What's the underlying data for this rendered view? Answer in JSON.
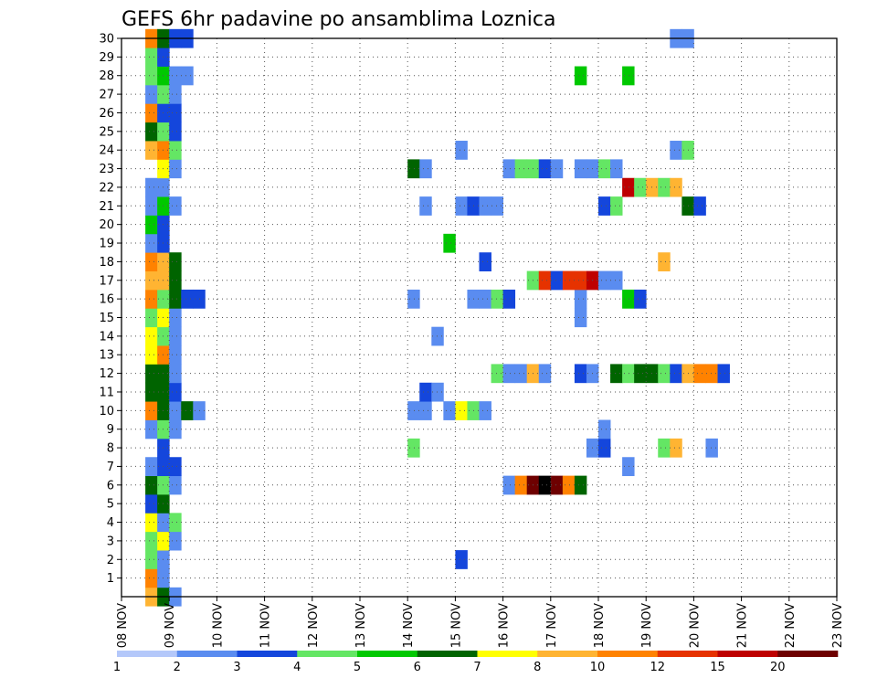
{
  "chart_data": {
    "type": "heatmap",
    "title": "GEFS 6hr padavine po ansamblima Loznica",
    "x_ticks": [
      "08 NOV",
      "09 NOV",
      "10 NOV",
      "11 NOV",
      "12 NOV",
      "13 NOV",
      "14 NOV",
      "15 NOV",
      "16 NOV",
      "17 NOV",
      "18 NOV",
      "19 NOV",
      "20 NOV",
      "21 NOV",
      "22 NOV",
      "23 NOV"
    ],
    "y_ticks": [
      1,
      2,
      3,
      4,
      5,
      6,
      7,
      8,
      9,
      10,
      11,
      12,
      13,
      14,
      15,
      16,
      17,
      18,
      19,
      20,
      21,
      22,
      23,
      24,
      25,
      26,
      27,
      28,
      29,
      30
    ],
    "x_range": [
      "08 NOV 00z",
      "23 NOV 00z"
    ],
    "x_step_hours": 6,
    "y_range": [
      0,
      30
    ],
    "grid": "dotted",
    "legend": {
      "placement": "bottom",
      "labels": [
        "1",
        "2",
        "3",
        "4",
        "5",
        "6",
        "7",
        "8",
        "10",
        "12",
        "15",
        "20"
      ],
      "colors": [
        "#b4c8fa",
        "#5a8cf0",
        "#1446dc",
        "#64e664",
        "#00c800",
        "#006400",
        "#ffff00",
        "#ffb432",
        "#ff8200",
        "#e63200",
        "#be0000",
        "#6e0000"
      ]
    },
    "cells": [
      [
        0,
        2,
        7
      ],
      [
        0,
        3,
        5
      ],
      [
        0,
        4,
        1
      ],
      [
        1,
        2,
        8
      ],
      [
        1,
        3,
        1
      ],
      [
        2,
        2,
        3
      ],
      [
        2,
        3,
        1
      ],
      [
        3,
        2,
        3
      ],
      [
        3,
        3,
        6
      ],
      [
        3,
        4,
        1
      ],
      [
        4,
        2,
        6
      ],
      [
        4,
        3,
        1
      ],
      [
        4,
        4,
        3
      ],
      [
        5,
        2,
        2
      ],
      [
        5,
        3,
        5
      ],
      [
        6,
        2,
        5
      ],
      [
        6,
        3,
        3
      ],
      [
        6,
        4,
        1
      ],
      [
        7,
        2,
        1
      ],
      [
        7,
        3,
        2
      ],
      [
        7,
        4,
        2
      ],
      [
        8,
        3,
        2
      ],
      [
        9,
        2,
        1
      ],
      [
        9,
        3,
        3
      ],
      [
        9,
        4,
        1
      ],
      [
        10,
        2,
        8
      ],
      [
        10,
        3,
        5
      ],
      [
        10,
        4,
        1
      ],
      [
        10,
        5,
        5
      ],
      [
        10,
        6,
        1
      ],
      [
        11,
        2,
        5
      ],
      [
        11,
        3,
        5
      ],
      [
        11,
        4,
        2
      ],
      [
        12,
        2,
        5
      ],
      [
        12,
        3,
        5
      ],
      [
        12,
        4,
        1
      ],
      [
        13,
        2,
        6
      ],
      [
        13,
        3,
        8
      ],
      [
        13,
        4,
        1
      ],
      [
        14,
        2,
        6
      ],
      [
        14,
        3,
        3
      ],
      [
        14,
        4,
        1
      ],
      [
        15,
        2,
        3
      ],
      [
        15,
        3,
        6
      ],
      [
        15,
        4,
        1
      ],
      [
        16,
        2,
        8
      ],
      [
        16,
        3,
        3
      ],
      [
        16,
        4,
        5
      ],
      [
        16,
        5,
        2
      ],
      [
        16,
        6,
        2
      ],
      [
        17,
        2,
        7
      ],
      [
        17,
        3,
        7
      ],
      [
        17,
        4,
        5
      ],
      [
        18,
        2,
        8
      ],
      [
        18,
        3,
        7
      ],
      [
        18,
        4,
        5
      ],
      [
        19,
        2,
        1
      ],
      [
        19,
        3,
        2
      ],
      [
        20,
        2,
        4
      ],
      [
        20,
        3,
        2
      ],
      [
        21,
        2,
        1
      ],
      [
        21,
        3,
        4
      ],
      [
        21,
        4,
        1
      ],
      [
        22,
        2,
        1
      ],
      [
        22,
        3,
        1
      ],
      [
        23,
        3,
        6
      ],
      [
        23,
        4,
        1
      ],
      [
        24,
        2,
        7
      ],
      [
        24,
        3,
        8
      ],
      [
        24,
        4,
        3
      ],
      [
        25,
        2,
        5
      ],
      [
        25,
        3,
        3
      ],
      [
        25,
        4,
        2
      ],
      [
        26,
        2,
        8
      ],
      [
        26,
        3,
        2
      ],
      [
        26,
        4,
        2
      ],
      [
        27,
        2,
        1
      ],
      [
        27,
        3,
        3
      ],
      [
        27,
        4,
        1
      ],
      [
        28,
        2,
        3
      ],
      [
        28,
        3,
        4
      ],
      [
        28,
        4,
        1
      ],
      [
        28,
        5,
        1
      ],
      [
        29,
        2,
        3
      ],
      [
        29,
        3,
        2
      ],
      [
        30,
        2,
        8
      ],
      [
        30,
        3,
        5
      ],
      [
        30,
        4,
        2
      ],
      [
        30,
        5,
        2
      ],
      [
        2,
        28,
        2
      ],
      [
        6,
        32,
        1
      ],
      [
        6,
        33,
        8
      ],
      [
        6,
        34,
        11
      ],
      [
        6,
        35,
        12
      ],
      [
        6,
        36,
        11
      ],
      [
        6,
        37,
        8
      ],
      [
        6,
        38,
        5
      ],
      [
        7,
        42,
        1
      ],
      [
        8,
        24,
        3
      ],
      [
        8,
        39,
        1
      ],
      [
        8,
        40,
        2
      ],
      [
        8,
        45,
        3
      ],
      [
        8,
        46,
        7
      ],
      [
        8,
        49,
        1
      ],
      [
        9,
        40,
        1
      ],
      [
        10,
        24,
        1
      ],
      [
        10,
        25,
        1
      ],
      [
        10,
        27,
        1
      ],
      [
        10,
        28,
        6
      ],
      [
        10,
        29,
        3
      ],
      [
        10,
        30,
        1
      ],
      [
        11,
        25,
        2
      ],
      [
        11,
        26,
        1
      ],
      [
        12,
        31,
        3
      ],
      [
        12,
        32,
        1
      ],
      [
        12,
        33,
        1
      ],
      [
        12,
        34,
        7
      ],
      [
        12,
        35,
        1
      ],
      [
        12,
        38,
        2
      ],
      [
        12,
        39,
        1
      ],
      [
        12,
        41,
        5
      ],
      [
        12,
        42,
        3
      ],
      [
        12,
        43,
        5
      ],
      [
        12,
        44,
        5
      ],
      [
        12,
        45,
        3
      ],
      [
        12,
        46,
        2
      ],
      [
        12,
        47,
        7
      ],
      [
        12,
        48,
        8
      ],
      [
        12,
        49,
        8
      ],
      [
        12,
        50,
        2
      ],
      [
        14,
        26,
        1
      ],
      [
        15,
        38,
        1
      ],
      [
        16,
        24,
        1
      ],
      [
        16,
        29,
        1
      ],
      [
        16,
        30,
        1
      ],
      [
        16,
        31,
        3
      ],
      [
        16,
        32,
        2
      ],
      [
        16,
        38,
        1
      ],
      [
        16,
        42,
        4
      ],
      [
        16,
        43,
        2
      ],
      [
        17,
        34,
        3
      ],
      [
        17,
        35,
        9
      ],
      [
        17,
        36,
        2
      ],
      [
        17,
        37,
        9
      ],
      [
        17,
        38,
        9
      ],
      [
        17,
        39,
        10
      ],
      [
        17,
        40,
        1
      ],
      [
        17,
        41,
        1
      ],
      [
        18,
        30,
        2
      ],
      [
        18,
        45,
        7
      ],
      [
        19,
        27,
        4
      ],
      [
        21,
        25,
        1
      ],
      [
        21,
        28,
        1
      ],
      [
        21,
        29,
        2
      ],
      [
        21,
        30,
        1
      ],
      [
        21,
        31,
        1
      ],
      [
        21,
        40,
        2
      ],
      [
        21,
        41,
        3
      ],
      [
        21,
        47,
        5
      ],
      [
        21,
        48,
        2
      ],
      [
        22,
        42,
        10
      ],
      [
        22,
        43,
        3
      ],
      [
        22,
        44,
        7
      ],
      [
        22,
        45,
        3
      ],
      [
        22,
        46,
        7
      ],
      [
        23,
        24,
        5
      ],
      [
        23,
        25,
        1
      ],
      [
        23,
        32,
        1
      ],
      [
        23,
        33,
        3
      ],
      [
        23,
        34,
        3
      ],
      [
        23,
        35,
        2
      ],
      [
        23,
        36,
        1
      ],
      [
        23,
        38,
        1
      ],
      [
        23,
        39,
        1
      ],
      [
        23,
        40,
        3
      ],
      [
        23,
        41,
        1
      ],
      [
        24,
        28,
        1
      ],
      [
        24,
        46,
        1
      ],
      [
        24,
        47,
        3
      ],
      [
        28,
        38,
        4
      ],
      [
        28,
        42,
        4
      ],
      [
        30,
        46,
        1
      ],
      [
        30,
        47,
        1
      ]
    ]
  }
}
